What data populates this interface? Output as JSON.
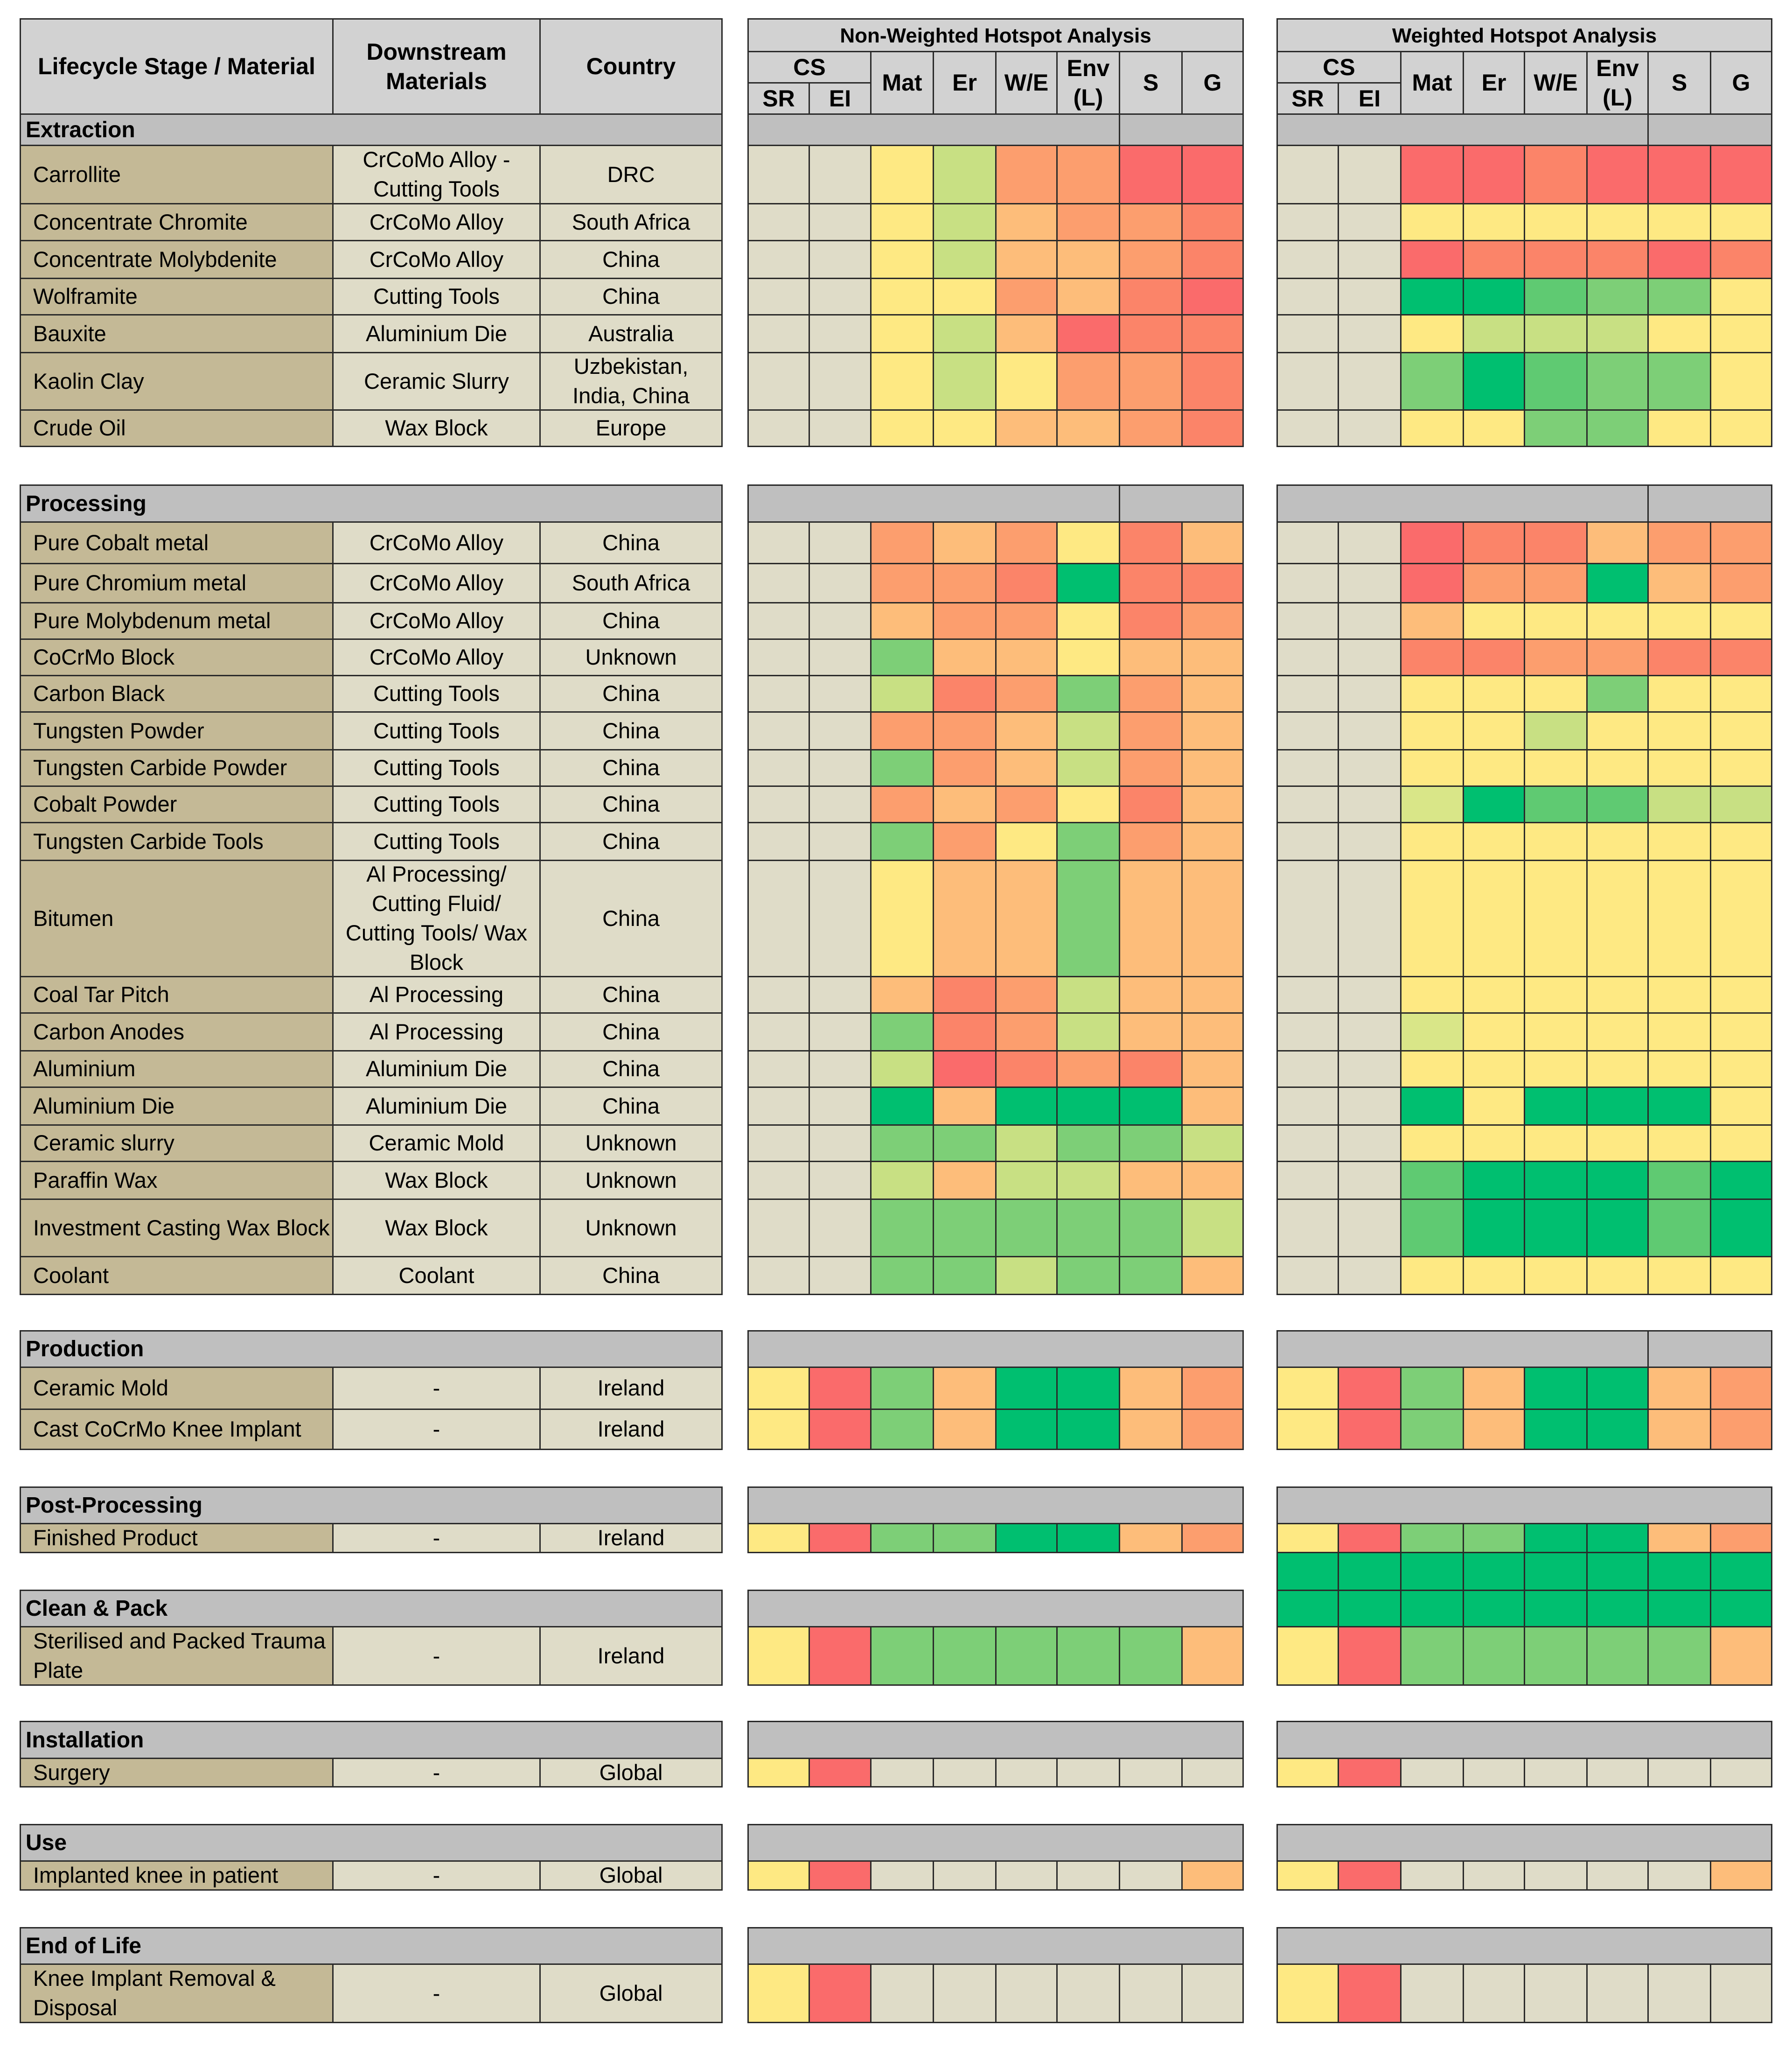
{
  "headers": {
    "stage": "Lifecycle Stage / Material",
    "downstream": "Downstream Materials",
    "country": "Country",
    "non_weighted_title": "Non-Weighted Hotspot Analysis",
    "weighted_title": "Weighted Hotspot Analysis",
    "cs": "CS",
    "metric_columns": [
      "SR",
      "EI",
      "Mat",
      "Er",
      "W/E",
      "Env (L)",
      "S",
      "G"
    ]
  },
  "palette": {
    "N": "#dfdcc8",
    "Y": "#fee983",
    "O": "#fdbd7a",
    "O2": "#fc9e6e",
    "R": "#fa6b6b",
    "RO": "#fb8469",
    "LG": "#c8e083",
    "G": "#7dcf77",
    "G2": "#5fca72",
    "DG": "#00bf70",
    "LY": "#d9e688"
  },
  "sections": [
    {
      "name": "Extraction",
      "rows": [
        {
          "material": "Carrollite",
          "downstream": "CrCoMo Alloy - Cutting Tools",
          "country": "DRC",
          "nw": [
            "N",
            "N",
            "Y",
            "LG",
            "O2",
            "O2",
            "R",
            "R"
          ],
          "w": [
            "N",
            "N",
            "R",
            "R",
            "RO",
            "R",
            "R",
            "R"
          ]
        },
        {
          "material": "Concentrate Chromite",
          "downstream": "CrCoMo Alloy",
          "country": "South Africa",
          "nw": [
            "N",
            "N",
            "Y",
            "LG",
            "O",
            "O2",
            "O2",
            "RO"
          ],
          "w": [
            "N",
            "N",
            "Y",
            "Y",
            "Y",
            "Y",
            "Y",
            "Y"
          ]
        },
        {
          "material": "Concentrate Molybdenite",
          "downstream": "CrCoMo Alloy",
          "country": "China",
          "nw": [
            "N",
            "N",
            "Y",
            "LG",
            "O",
            "O",
            "O2",
            "RO"
          ],
          "w": [
            "N",
            "N",
            "R",
            "RO",
            "RO",
            "RO",
            "R",
            "RO"
          ]
        },
        {
          "material": "Wolframite",
          "downstream": "Cutting Tools",
          "country": "China",
          "nw": [
            "N",
            "N",
            "Y",
            "Y",
            "O2",
            "O",
            "RO",
            "R"
          ],
          "w": [
            "N",
            "N",
            "DG",
            "DG",
            "G2",
            "G",
            "G",
            "Y"
          ]
        },
        {
          "material": "Bauxite",
          "downstream": "Aluminium Die",
          "country": "Australia",
          "nw": [
            "N",
            "N",
            "Y",
            "LG",
            "O",
            "R",
            "RO",
            "RO"
          ],
          "w": [
            "N",
            "N",
            "Y",
            "LG",
            "LG",
            "LG",
            "Y",
            "Y"
          ]
        },
        {
          "material": "Kaolin Clay",
          "downstream": "Ceramic Slurry",
          "country": "Uzbekistan, India, China",
          "nw": [
            "N",
            "N",
            "Y",
            "LG",
            "Y",
            "O2",
            "O2",
            "RO"
          ],
          "w": [
            "N",
            "N",
            "G",
            "DG",
            "G2",
            "G",
            "G",
            "Y"
          ]
        },
        {
          "material": "Crude Oil",
          "downstream": "Wax Block",
          "country": "Europe",
          "nw": [
            "N",
            "N",
            "Y",
            "Y",
            "O",
            "O",
            "O2",
            "RO"
          ],
          "w": [
            "N",
            "N",
            "Y",
            "Y",
            "G",
            "G",
            "Y",
            "Y"
          ]
        }
      ]
    },
    {
      "name": "Processing",
      "rows": [
        {
          "material": "Pure Cobalt metal",
          "downstream": "CrCoMo Alloy",
          "country": "China",
          "nw": [
            "N",
            "N",
            "O2",
            "O",
            "O2",
            "Y",
            "RO",
            "O"
          ],
          "w": [
            "N",
            "N",
            "R",
            "RO",
            "RO",
            "O",
            "O2",
            "O2"
          ]
        },
        {
          "material": "Pure Chromium metal",
          "downstream": "CrCoMo Alloy",
          "country": "South Africa",
          "nw": [
            "N",
            "N",
            "O2",
            "O2",
            "RO",
            "DG",
            "RO",
            "RO"
          ],
          "w": [
            "N",
            "N",
            "R",
            "O2",
            "O2",
            "DG",
            "O",
            "O2"
          ]
        },
        {
          "material": "Pure Molybdenum metal",
          "downstream": "CrCoMo Alloy",
          "country": "China",
          "nw": [
            "N",
            "N",
            "O",
            "O2",
            "O2",
            "Y",
            "RO",
            "O2"
          ],
          "w": [
            "N",
            "N",
            "O",
            "Y",
            "Y",
            "Y",
            "Y",
            "Y"
          ]
        },
        {
          "material": "CoCrMo Block",
          "downstream": "CrCoMo Alloy",
          "country": "Unknown",
          "nw": [
            "N",
            "N",
            "G",
            "O",
            "O",
            "Y",
            "O",
            "O"
          ],
          "w": [
            "N",
            "N",
            "RO",
            "RO",
            "O2",
            "O2",
            "RO",
            "RO"
          ]
        },
        {
          "material": "Carbon Black",
          "downstream": "Cutting Tools",
          "country": "China",
          "nw": [
            "N",
            "N",
            "LG",
            "RO",
            "O2",
            "G",
            "O2",
            "O"
          ],
          "w": [
            "N",
            "N",
            "Y",
            "Y",
            "Y",
            "G",
            "Y",
            "Y"
          ]
        },
        {
          "material": "Tungsten Powder",
          "downstream": "Cutting Tools",
          "country": "China",
          "nw": [
            "N",
            "N",
            "O2",
            "O2",
            "O",
            "LG",
            "O2",
            "O"
          ],
          "w": [
            "N",
            "N",
            "Y",
            "Y",
            "LG",
            "Y",
            "Y",
            "Y"
          ]
        },
        {
          "material": "Tungsten Carbide Powder",
          "downstream": "Cutting Tools",
          "country": "China",
          "nw": [
            "N",
            "N",
            "G",
            "O2",
            "O",
            "LG",
            "O2",
            "O"
          ],
          "w": [
            "N",
            "N",
            "Y",
            "Y",
            "Y",
            "Y",
            "Y",
            "Y"
          ]
        },
        {
          "material": "Cobalt Powder",
          "downstream": "Cutting Tools",
          "country": "China",
          "nw": [
            "N",
            "N",
            "O2",
            "O",
            "O2",
            "Y",
            "RO",
            "O"
          ],
          "w": [
            "N",
            "N",
            "LY",
            "DG",
            "G2",
            "G2",
            "LG",
            "LG"
          ]
        },
        {
          "material": "Tungsten Carbide Tools",
          "downstream": "Cutting Tools",
          "country": "China",
          "nw": [
            "N",
            "N",
            "G",
            "O2",
            "Y",
            "G",
            "O2",
            "O"
          ],
          "w": [
            "N",
            "N",
            "Y",
            "Y",
            "Y",
            "Y",
            "Y",
            "Y"
          ]
        },
        {
          "material": "Bitumen",
          "downstream": "Al Processing/ Cutting Fluid/ Cutting Tools/ Wax Block",
          "country": "China",
          "nw": [
            "N",
            "N",
            "Y",
            "O",
            "O",
            "G",
            "O",
            "O"
          ],
          "w": [
            "N",
            "N",
            "Y",
            "Y",
            "Y",
            "Y",
            "Y",
            "Y"
          ]
        },
        {
          "material": "Coal Tar Pitch",
          "downstream": "Al Processing",
          "country": "China",
          "nw": [
            "N",
            "N",
            "O",
            "RO",
            "O2",
            "LG",
            "O",
            "O"
          ],
          "w": [
            "N",
            "N",
            "Y",
            "Y",
            "Y",
            "Y",
            "Y",
            "Y"
          ]
        },
        {
          "material": "Carbon Anodes",
          "downstream": "Al Processing",
          "country": "China",
          "nw": [
            "N",
            "N",
            "G",
            "RO",
            "O2",
            "LG",
            "O",
            "O"
          ],
          "w": [
            "N",
            "N",
            "LY",
            "Y",
            "Y",
            "Y",
            "Y",
            "Y"
          ]
        },
        {
          "material": "Aluminium",
          "downstream": "Aluminium Die",
          "country": "China",
          "nw": [
            "N",
            "N",
            "LG",
            "R",
            "RO",
            "O2",
            "RO",
            "O"
          ],
          "w": [
            "N",
            "N",
            "Y",
            "Y",
            "Y",
            "Y",
            "Y",
            "Y"
          ]
        },
        {
          "material": "Aluminium Die",
          "downstream": "Aluminium Die",
          "country": "China",
          "nw": [
            "N",
            "N",
            "DG",
            "O",
            "DG",
            "DG",
            "DG",
            "O"
          ],
          "w": [
            "N",
            "N",
            "DG",
            "Y",
            "DG",
            "DG",
            "DG",
            "Y"
          ]
        },
        {
          "material": "Ceramic slurry",
          "downstream": "Ceramic Mold",
          "country": "Unknown",
          "nw": [
            "N",
            "N",
            "G",
            "G",
            "LG",
            "G",
            "G",
            "LG"
          ],
          "w": [
            "N",
            "N",
            "Y",
            "Y",
            "Y",
            "Y",
            "Y",
            "Y"
          ]
        },
        {
          "material": "Paraffin Wax",
          "downstream": "Wax Block",
          "country": "Unknown",
          "nw": [
            "N",
            "N",
            "LG",
            "O",
            "LG",
            "LG",
            "O",
            "O"
          ],
          "w": [
            "N",
            "N",
            "G2",
            "DG",
            "DG",
            "DG",
            "G2",
            "DG"
          ]
        },
        {
          "material": "Investment Casting Wax Block",
          "downstream": "Wax Block",
          "country": "Unknown",
          "nw": [
            "N",
            "N",
            "G",
            "G",
            "G",
            "G",
            "G",
            "LG"
          ],
          "w": [
            "N",
            "N",
            "G2",
            "DG",
            "DG",
            "DG",
            "G2",
            "DG"
          ]
        },
        {
          "material": "Coolant",
          "downstream": "Coolant",
          "country": "China",
          "nw": [
            "N",
            "N",
            "G",
            "G",
            "LG",
            "G",
            "G",
            "O"
          ],
          "w": [
            "N",
            "N",
            "Y",
            "Y",
            "Y",
            "Y",
            "Y",
            "Y"
          ]
        }
      ]
    },
    {
      "name": "Production",
      "rows": [
        {
          "material": "Ceramic Mold",
          "downstream": "-",
          "country": "Ireland",
          "nw": [
            "Y",
            "R",
            "G",
            "O",
            "DG",
            "DG",
            "O",
            "O2"
          ],
          "w": [
            "Y",
            "R",
            "G",
            "O",
            "DG",
            "DG",
            "O",
            "O2"
          ]
        },
        {
          "material": "Cast CoCrMo Knee Implant",
          "downstream": "-",
          "country": "Ireland",
          "nw": [
            "Y",
            "R",
            "G",
            "O",
            "DG",
            "DG",
            "O",
            "O2"
          ],
          "w": [
            "Y",
            "R",
            "G",
            "O",
            "DG",
            "DG",
            "O",
            "O2"
          ]
        }
      ]
    },
    {
      "name": "Post-Processing",
      "rows": [
        {
          "material": "Finished Product",
          "downstream": "-",
          "country": "Ireland",
          "nw": [
            "Y",
            "R",
            "G",
            "G",
            "DG",
            "DG",
            "O",
            "O2"
          ],
          "w": [
            "Y",
            "R",
            "G",
            "G",
            "DG",
            "DG",
            "O",
            "O2"
          ]
        }
      ]
    },
    {
      "name": "Clean & Pack",
      "rows": [
        {
          "material": "Sterilised and Packed Trauma Plate",
          "downstream": "-",
          "country": "Ireland",
          "nw": [
            "Y",
            "R",
            "G",
            "G",
            "G",
            "G",
            "G",
            "O"
          ],
          "w": [
            "Y",
            "R",
            "G",
            "G",
            "G",
            "G",
            "G",
            "O"
          ]
        }
      ]
    },
    {
      "name": "Installation",
      "rows": [
        {
          "material": "Surgery",
          "downstream": "-",
          "country": "Global",
          "nw": [
            "Y",
            "R",
            "N",
            "N",
            "N",
            "N",
            "N",
            "N"
          ],
          "w": [
            "Y",
            "R",
            "N",
            "N",
            "N",
            "N",
            "N",
            "N"
          ]
        }
      ]
    },
    {
      "name": "Use",
      "rows": [
        {
          "material": "Implanted knee in patient",
          "downstream": "-",
          "country": "Global",
          "nw": [
            "Y",
            "R",
            "N",
            "N",
            "N",
            "N",
            "N",
            "O"
          ],
          "w": [
            "Y",
            "R",
            "N",
            "N",
            "N",
            "N",
            "N",
            "O"
          ]
        }
      ]
    },
    {
      "name": "End of Life",
      "rows": [
        {
          "material": "Knee Implant Removal & Disposal",
          "downstream": "-",
          "country": "Global",
          "nw": [
            "Y",
            "R",
            "N",
            "N",
            "N",
            "N",
            "N",
            "N"
          ],
          "w": [
            "Y",
            "R",
            "N",
            "N",
            "N",
            "N",
            "N",
            "N"
          ]
        }
      ]
    }
  ]
}
